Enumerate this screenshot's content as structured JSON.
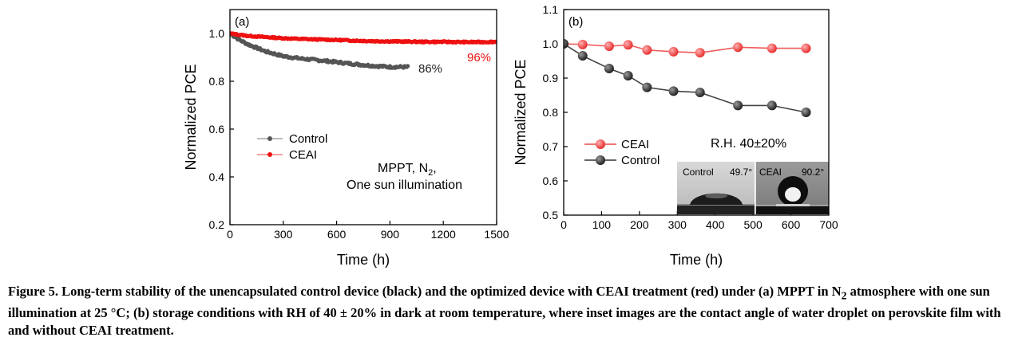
{
  "chart_data": [
    {
      "type": "scatter",
      "panel_label": "(a)",
      "xlabel": "Time (h)",
      "ylabel": "Normalized PCE",
      "xlim": [
        0,
        1500
      ],
      "ylim": [
        0.2,
        1.1
      ],
      "xticks": [
        0,
        300,
        600,
        900,
        1200,
        1500
      ],
      "xtick_labels": [
        "0",
        "300",
        "600",
        "900",
        "1200",
        "1500"
      ],
      "yticks": [
        0.2,
        0.4,
        0.6,
        0.8,
        1.0
      ],
      "ytick_labels": [
        "0.2",
        "0.4",
        "0.6",
        "0.8",
        "1.0"
      ],
      "legend_position": "center-left",
      "legend": [
        "Control",
        "CEAI"
      ],
      "annotation": [
        "MPPT, N",
        "2",
        ",",
        "One sun illumination"
      ],
      "series": [
        {
          "name": "Control",
          "color": "#555555",
          "end_label": "86%",
          "x": [
            0,
            50,
            100,
            150,
            200,
            250,
            300,
            400,
            500,
            600,
            700,
            800,
            900,
            1000
          ],
          "y": [
            1.0,
            0.975,
            0.955,
            0.94,
            0.925,
            0.915,
            0.905,
            0.895,
            0.888,
            0.88,
            0.872,
            0.865,
            0.86,
            0.86
          ]
        },
        {
          "name": "CEAI",
          "color": "#ee1111",
          "end_label": "96%",
          "x": [
            0,
            100,
            200,
            300,
            400,
            500,
            600,
            700,
            800,
            900,
            1000,
            1100,
            1200,
            1300,
            1400,
            1500
          ],
          "y": [
            1.0,
            0.99,
            0.985,
            0.98,
            0.977,
            0.975,
            0.973,
            0.97,
            0.968,
            0.967,
            0.966,
            0.965,
            0.965,
            0.964,
            0.964,
            0.965
          ]
        }
      ]
    },
    {
      "type": "line",
      "panel_label": "(b)",
      "xlabel": "Time (h)",
      "ylabel": "Normalized PCE",
      "xlim": [
        0,
        700
      ],
      "ylim": [
        0.5,
        1.1
      ],
      "xticks": [
        0,
        100,
        200,
        300,
        400,
        500,
        600,
        700
      ],
      "xtick_labels": [
        "0",
        "100",
        "200",
        "300",
        "400",
        "500",
        "600",
        "700"
      ],
      "yticks": [
        0.5,
        0.6,
        0.7,
        0.8,
        0.9,
        1.0,
        1.1
      ],
      "ytick_labels": [
        "0.5",
        "0.6",
        "0.7",
        "0.8",
        "0.9",
        "1.0",
        "1.1"
      ],
      "legend_position": "lower-left",
      "legend": [
        "CEAI",
        "Control"
      ],
      "annotation": "R.H. 40±20%",
      "inset": {
        "left_label": "Control",
        "left_angle": "49.7°",
        "right_label": "CEAI",
        "right_angle": "90.2°"
      },
      "series": [
        {
          "name": "CEAI",
          "color": "#f05a5a",
          "x": [
            0,
            50,
            120,
            170,
            220,
            290,
            360,
            460,
            550,
            640
          ],
          "y": [
            1.0,
            0.998,
            0.993,
            0.997,
            0.982,
            0.977,
            0.974,
            0.99,
            0.987,
            0.987
          ]
        },
        {
          "name": "Control",
          "color": "#444444",
          "x": [
            0,
            50,
            120,
            170,
            220,
            290,
            360,
            460,
            550,
            640
          ],
          "y": [
            1.0,
            0.965,
            0.928,
            0.907,
            0.873,
            0.862,
            0.858,
            0.82,
            0.82,
            0.8
          ]
        }
      ]
    }
  ],
  "caption": {
    "part1": "Figure 5. Long-term stability of the unencapsulated control device (black) and the optimized device with CEAI treatment (red) under (a) MPPT in N",
    "sub": "2",
    "part2": " atmosphere with one sun illumination at 25 °C; (b) storage conditions with RH of 40 ± 20% in dark at room temperature, where inset images are the contact angle of water droplet on perovskite film with and without CEAI treatment."
  }
}
